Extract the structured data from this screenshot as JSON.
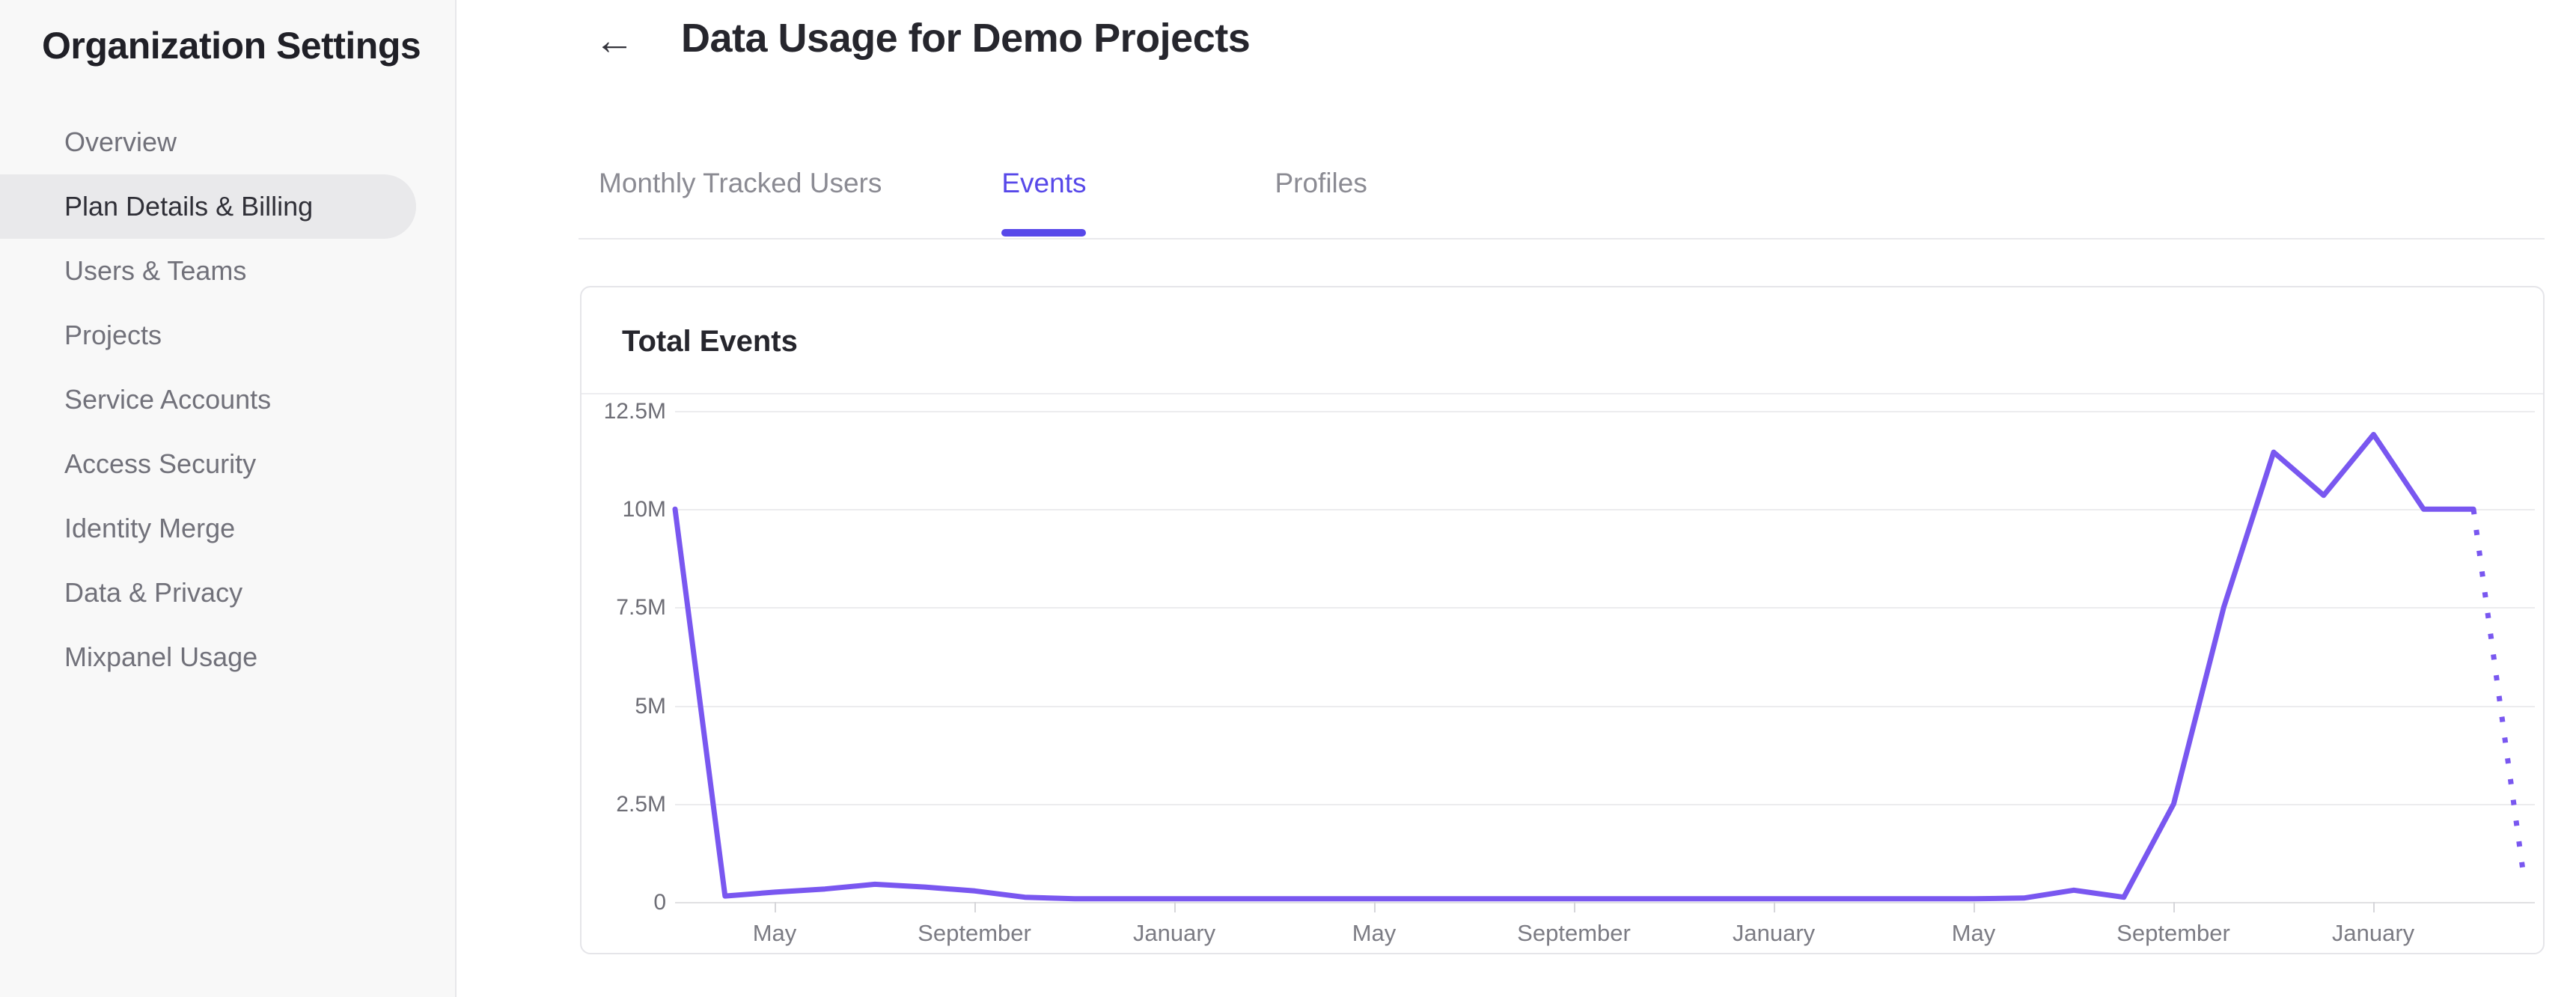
{
  "sidebar": {
    "title": "Organization Settings",
    "items": [
      {
        "label": "Overview",
        "selected": false
      },
      {
        "label": "Plan Details & Billing",
        "selected": true
      },
      {
        "label": "Users & Teams",
        "selected": false
      },
      {
        "label": "Projects",
        "selected": false
      },
      {
        "label": "Service Accounts",
        "selected": false
      },
      {
        "label": "Access Security",
        "selected": false
      },
      {
        "label": "Identity Merge",
        "selected": false
      },
      {
        "label": "Data & Privacy",
        "selected": false
      },
      {
        "label": "Mixpanel Usage",
        "selected": false
      }
    ]
  },
  "header": {
    "back_icon": "←",
    "title": "Data Usage for Demo Projects"
  },
  "tabs": [
    {
      "label": "Monthly Tracked Users",
      "active": false
    },
    {
      "label": "Events",
      "active": true
    },
    {
      "label": "Profiles",
      "active": false
    }
  ],
  "card": {
    "title": "Total Events"
  },
  "colors": {
    "accent_active_tab": "#5748e9",
    "chart_line": "#7957f0",
    "sidebar_bg": "#f8f8f8",
    "selected_item_bg": "#e9e9eb",
    "gridline": "#ececee",
    "text_dark": "#26262d",
    "text_muted": "#71717a"
  },
  "chart_data": {
    "type": "line",
    "title": "Total Events",
    "x_unit": "month",
    "x": [
      "Mar",
      "Apr",
      "May",
      "Jun",
      "Jul",
      "Aug",
      "Sep",
      "Oct",
      "Nov",
      "Dec",
      "Jan",
      "Feb",
      "Mar",
      "Apr",
      "May",
      "Jun",
      "Jul",
      "Aug",
      "Sep",
      "Oct",
      "Nov",
      "Dec",
      "Jan",
      "Feb",
      "Mar",
      "Apr",
      "May",
      "Jun",
      "Jul",
      "Aug",
      "Sep",
      "Oct",
      "Nov",
      "Dec",
      "Jan",
      "Feb",
      "Mar",
      "Apr"
    ],
    "values_millions": [
      10,
      0.15,
      0.25,
      0.33,
      0.45,
      0.38,
      0.28,
      0.12,
      0.08,
      0.08,
      0.08,
      0.08,
      0.08,
      0.08,
      0.08,
      0.08,
      0.08,
      0.08,
      0.08,
      0.08,
      0.08,
      0.08,
      0.08,
      0.08,
      0.08,
      0.08,
      0.08,
      0.1,
      0.3,
      0.12,
      2.5,
      7.5,
      11.45,
      10.35,
      11.9,
      10,
      10,
      0.7
    ],
    "projected_from_index": 36,
    "projected_style": "dotted",
    "x_tick_labels": [
      "May",
      "September",
      "January",
      "May",
      "September",
      "January",
      "May",
      "September",
      "January"
    ],
    "x_tick_indices": [
      2,
      6,
      10,
      14,
      18,
      22,
      26,
      30,
      34
    ],
    "y_tick_labels_top_down": [
      "12.5M",
      "10M",
      "7.5M",
      "5M",
      "2.5M",
      "0"
    ],
    "ylim_millions": [
      0,
      12.5
    ],
    "grid": "horizontal",
    "legend": "none",
    "line_color": "#7957f0"
  }
}
